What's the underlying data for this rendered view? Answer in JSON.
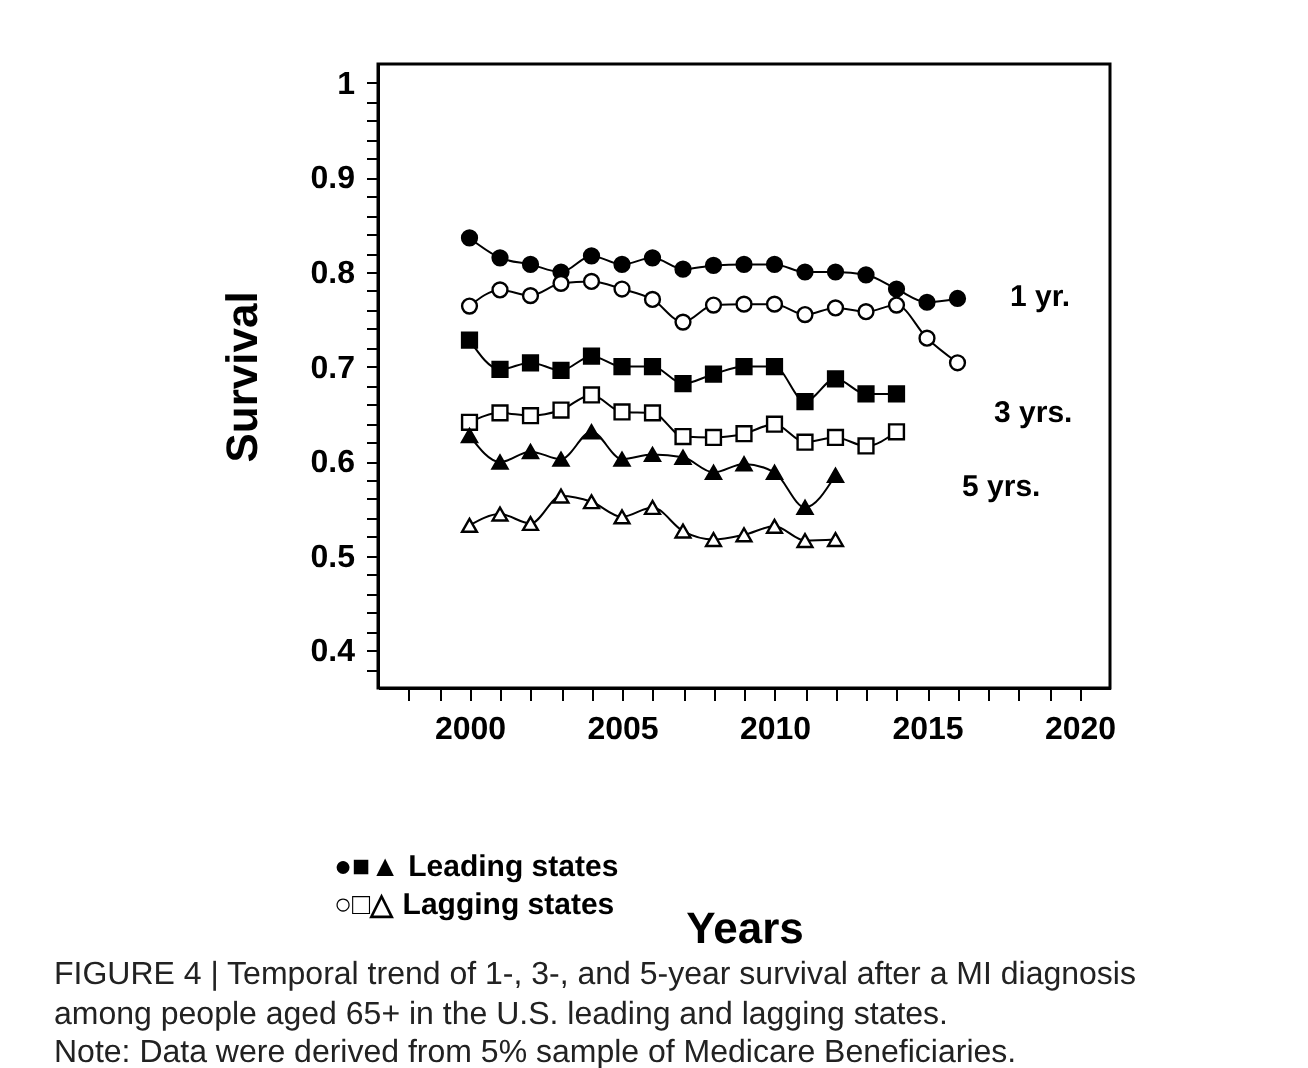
{
  "chart_data": {
    "type": "line",
    "xlabel": "Years",
    "ylabel": "Survival",
    "x": [
      2000,
      2001,
      2002,
      2003,
      2004,
      2005,
      2006,
      2007,
      2008,
      2009,
      2010,
      2011,
      2012,
      2013,
      2014,
      2015,
      2016
    ],
    "series": [
      {
        "color": "#000000",
        "marker": "circle",
        "values": [
          0.836,
          0.815,
          0.808,
          0.8,
          0.817,
          0.808,
          0.815,
          0.803,
          0.807,
          0.808,
          0.808,
          0.8,
          0.8,
          0.797,
          0.782,
          0.768,
          0.772
        ]
      },
      {
        "color": "#000000",
        "marker": "circle",
        "values": [
          0.764,
          0.781,
          0.775,
          0.788,
          0.79,
          0.782,
          0.771,
          0.747,
          0.765,
          0.766,
          0.766,
          0.755,
          0.762,
          0.758,
          0.765,
          0.73,
          0.704
        ]
      },
      {
        "color": "#000000",
        "marker": "square",
        "values": [
          0.728,
          0.697,
          0.704,
          0.696,
          0.711,
          0.7,
          0.7,
          0.682,
          0.692,
          0.7,
          0.7,
          0.663,
          0.687,
          0.671,
          0.671,
          null,
          null
        ]
      },
      {
        "color": "#000000",
        "marker": "square",
        "values": [
          0.641,
          0.651,
          0.648,
          0.654,
          0.67,
          0.652,
          0.651,
          0.626,
          0.625,
          0.629,
          0.639,
          0.62,
          0.625,
          0.616,
          0.631,
          null,
          null
        ]
      },
      {
        "color": "#000000",
        "marker": "triangle",
        "values": [
          0.627,
          0.599,
          0.61,
          0.602,
          0.631,
          0.602,
          0.607,
          0.604,
          0.588,
          0.597,
          0.588,
          0.551,
          0.585,
          null,
          null,
          null,
          null
        ]
      },
      {
        "color": "#000000",
        "marker": "triangle",
        "values": [
          0.532,
          0.544,
          0.534,
          0.563,
          0.557,
          0.541,
          0.551,
          0.526,
          0.517,
          0.522,
          0.531,
          0.516,
          0.517,
          null,
          null,
          null,
          null
        ]
      }
    ],
    "xlim": [
      1997,
      2021
    ],
    "xticks": [
      {
        "value": 1998,
        "label": null
      },
      {
        "value": 1999,
        "label": null
      },
      2000,
      {
        "value": 2001,
        "label": null
      },
      {
        "value": 2002,
        "label": null
      },
      {
        "value": 2003,
        "label": null
      },
      {
        "value": 2004,
        "label": null
      },
      2005,
      {
        "value": 2006,
        "label": null
      },
      {
        "value": 2007,
        "label": null
      },
      {
        "value": 2008,
        "label": null
      },
      {
        "value": 2009,
        "label": null
      },
      2010,
      {
        "value": 2011,
        "label": null
      },
      {
        "value": 2012,
        "label": null
      },
      {
        "value": 2013,
        "label": null
      },
      {
        "value": 2014,
        "label": null
      },
      2015,
      {
        "value": 2016,
        "label": null
      },
      {
        "value": 2017,
        "label": null
      },
      {
        "value": 2018,
        "label": null
      },
      {
        "value": 2019,
        "label": null
      },
      2020
    ],
    "ylim": [
      0.36,
      1.02
    ],
    "yticks": [
      {
        "value": 0.38,
        "label": null
      },
      0.4,
      {
        "value": 0.42,
        "label": null
      },
      {
        "value": 0.44,
        "label": null
      },
      {
        "value": 0.46,
        "label": null
      },
      {
        "value": 0.48,
        "label": null
      },
      0.5,
      {
        "value": 0.52,
        "label": null
      },
      {
        "value": 0.54,
        "label": null
      },
      {
        "value": 0.56,
        "label": null
      },
      {
        "value": 0.58,
        "label": null
      },
      0.6,
      {
        "value": 0.62,
        "label": null
      },
      {
        "value": 0.64,
        "label": null
      },
      {
        "value": 0.66,
        "label": null
      },
      {
        "value": 0.68,
        "label": null
      },
      0.7,
      {
        "value": 0.72,
        "label": null
      },
      {
        "value": 0.74,
        "label": null
      },
      {
        "value": 0.76,
        "label": null
      },
      {
        "value": 0.78,
        "label": null
      },
      0.8,
      {
        "value": 0.82,
        "label": null
      },
      {
        "value": 0.84,
        "label": null
      },
      {
        "value": 0.86,
        "label": null
      },
      {
        "value": 0.88,
        "label": null
      },
      0.9,
      {
        "value": 0.92,
        "label": null
      },
      {
        "value": 0.94,
        "label": null
      },
      {
        "value": 0.96,
        "label": null
      },
      {
        "value": 0.98,
        "label": null
      },
      1
    ],
    "grid": false,
    "annotations": [
      "1 yr.",
      "3 yrs.",
      "5 yrs.",
      "●■▲  Leading states",
      "○□△  Lagging states",
      "FIGURE 4 | Temporal trend of 1-, 3-, and 5-year survival after a MI diagnosis",
      "among people aged 65+ in the U.S. leading and lagging states.",
      "Note: Data were derived from 5% sample of Medicare Beneficiaries."
    ]
  }
}
